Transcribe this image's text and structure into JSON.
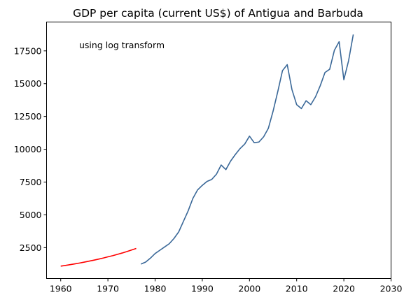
{
  "chart_data": {
    "type": "line",
    "title": "GDP per capita (current US$) of Antigua and Barbuda",
    "annotation": "using log transform",
    "xlabel": "",
    "ylabel": "",
    "xlim": [
      1957,
      2030
    ],
    "ylim": [
      150,
      19700
    ],
    "x_ticks": [
      1960,
      1970,
      1980,
      1990,
      2000,
      2010,
      2020,
      2030
    ],
    "y_ticks": [
      2500,
      5000,
      7500,
      10000,
      12500,
      15000,
      17500
    ],
    "grid": false,
    "series": [
      {
        "color": "#ff0000",
        "x": [
          1960,
          1961,
          1962,
          1963,
          1964,
          1965,
          1966,
          1967,
          1968,
          1969,
          1970,
          1971,
          1972,
          1973,
          1974,
          1975,
          1976
        ],
        "y": [
          1090,
          1145,
          1205,
          1265,
          1330,
          1400,
          1470,
          1545,
          1625,
          1710,
          1800,
          1890,
          1990,
          2090,
          2200,
          2320,
          2440
        ]
      },
      {
        "color": "#3a6898",
        "x": [
          1977,
          1978,
          1979,
          1980,
          1981,
          1982,
          1983,
          1984,
          1985,
          1986,
          1987,
          1988,
          1989,
          1990,
          1991,
          1992,
          1993,
          1994,
          1995,
          1996,
          1997,
          1998,
          1999,
          2000,
          2001,
          2002,
          2003,
          2004,
          2005,
          2006,
          2007,
          2008,
          2009,
          2010,
          2011,
          2012,
          2013,
          2014,
          2015,
          2016,
          2017,
          2018,
          2019,
          2020,
          2021,
          2022
        ],
        "y": [
          1250,
          1400,
          1700,
          2050,
          2300,
          2550,
          2800,
          3200,
          3700,
          4500,
          5300,
          6250,
          6900,
          7250,
          7550,
          7700,
          8100,
          8800,
          8450,
          9100,
          9600,
          10050,
          10400,
          11000,
          10500,
          10550,
          10950,
          11600,
          12900,
          14400,
          16000,
          16450,
          14550,
          13400,
          13100,
          13700,
          13400,
          14000,
          14850,
          15850,
          16100,
          17550,
          18200,
          15300,
          16750,
          18750
        ]
      }
    ]
  }
}
